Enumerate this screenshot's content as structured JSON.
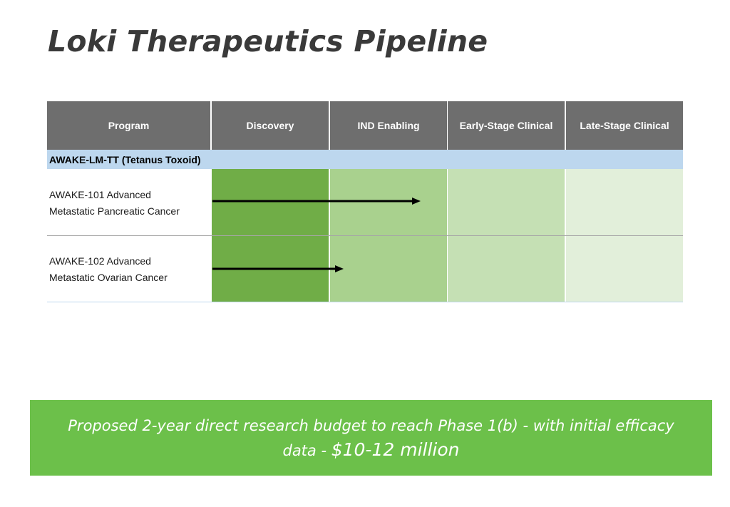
{
  "title": "Loki Therapeutics Pipeline",
  "table": {
    "headers": [
      "Program",
      "Discovery",
      "IND Enabling",
      "Early-Stage Clinical",
      "Late-Stage Clinical"
    ],
    "group": "AWAKE-LM-TT (Tetanus Toxoid)",
    "programs": [
      {
        "line1": "AWAKE-101 Advanced",
        "line2": "Metastatic Pancreatic Cancer",
        "progress_stages": 1.75
      },
      {
        "line1": "AWAKE-102 Advanced",
        "line2": "Metastatic Ovarian Cancer",
        "progress_stages": 1.1
      }
    ],
    "stage_colors": [
      "#70ad47",
      "#a9d18e",
      "#c5e0b4",
      "#e2efda"
    ],
    "header_color": "#6e6e6e",
    "group_color": "#bdd7ee"
  },
  "budget": {
    "text": "Proposed 2-year direct research budget to reach Phase 1(b) - with initial efficacy data  - ",
    "amount": "$10-12 million",
    "color": "#6cc04a"
  }
}
